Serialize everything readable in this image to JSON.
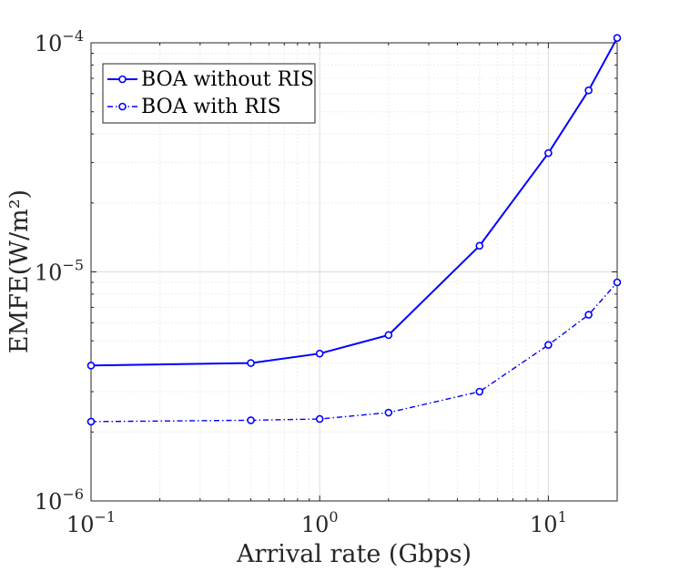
{
  "chart_data": {
    "type": "line",
    "title": "",
    "xlabel": "Arrival rate (Gbps)",
    "ylabel": "EMFE(W/m²)",
    "xscale": "log",
    "yscale": "log",
    "xlim": [
      0.1,
      20
    ],
    "ylim": [
      1e-06,
      0.0001
    ],
    "grid": true,
    "legend_position": "top-left",
    "x": [
      0.1,
      0.5,
      1,
      2,
      5,
      10,
      15,
      20
    ],
    "series": [
      {
        "name": "BOA without RIS",
        "style": "solid",
        "color": "#0000ff",
        "values": [
          3.9e-06,
          4e-06,
          4.4e-06,
          5.3e-06,
          1.3e-05,
          3.3e-05,
          6.2e-05,
          0.000105
        ]
      },
      {
        "name": "BOA with RIS",
        "style": "dashdot",
        "color": "#0000ff",
        "values": [
          2.22e-06,
          2.25e-06,
          2.28e-06,
          2.43e-06,
          3e-06,
          4.8e-06,
          6.5e-06,
          9e-06
        ]
      }
    ],
    "x_ticks": [
      {
        "value": 0.1,
        "base": "10",
        "exp": "−1"
      },
      {
        "value": 1,
        "base": "10",
        "exp": "0"
      },
      {
        "value": 10,
        "base": "10",
        "exp": "1"
      }
    ],
    "y_ticks": [
      {
        "value": 1e-06,
        "base": "10",
        "exp": "−6"
      },
      {
        "value": 1e-05,
        "base": "10",
        "exp": "−5"
      },
      {
        "value": 0.0001,
        "base": "10",
        "exp": "−4"
      }
    ]
  }
}
